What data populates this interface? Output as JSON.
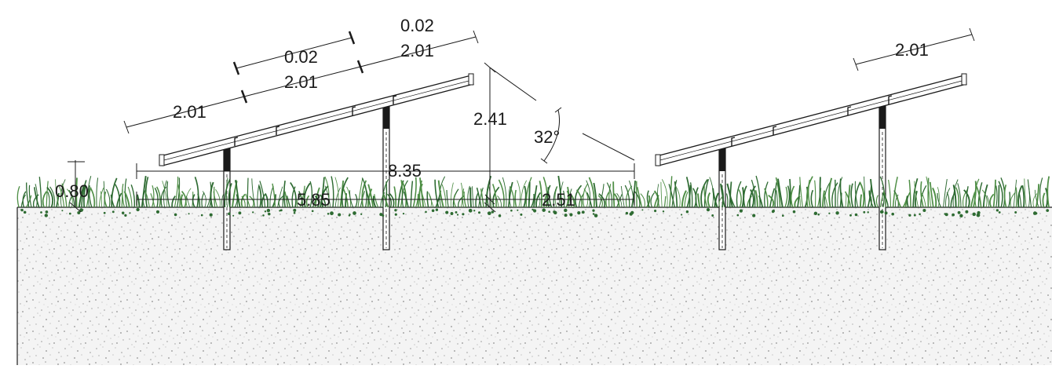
{
  "drawing": {
    "dimensions": {
      "module_length_left_1": "2.01",
      "module_length_left_2": "2.01",
      "module_length_left_3": "2.01",
      "module_gap_1": "0.02",
      "module_gap_2": "0.02",
      "module_length_right": "2.01",
      "table_height": "2.41",
      "tilt_angle": "32°",
      "row_pitch": "8.35",
      "ground_clearance": "0.80",
      "table_projection": "5.85",
      "row_spacing": "2.51"
    }
  },
  "colors": {
    "line": "#1a1a1a",
    "grass": "#2e6b32",
    "grass_light": "#4f8f46",
    "soil_bg": "#f4f4f4",
    "soil_speck": "#9a9a9a"
  }
}
